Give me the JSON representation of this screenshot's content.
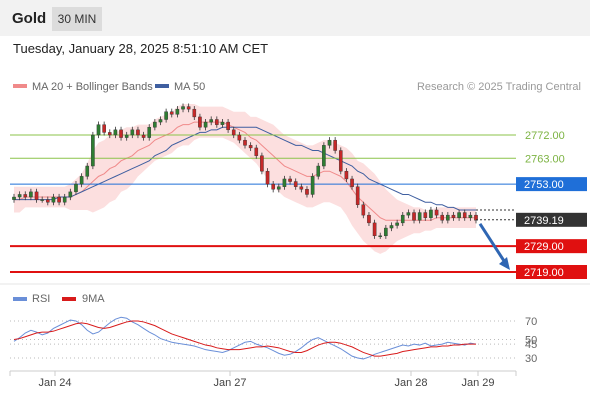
{
  "header": {
    "title": "Gold",
    "timeframe": "30 MIN"
  },
  "datetime": "Tuesday, January 28, 2025 8:51:10 AM CET",
  "legend": {
    "bb_label": "MA 20 + Bollinger Bands",
    "ma50_label": "MA 50"
  },
  "copyright": "Research © 2025 Trading Central",
  "colors": {
    "up": "#2e7d32",
    "down": "#c62828",
    "ma50": "#3f5fa0",
    "bb_fill": "#fcd9d9",
    "bb_line": "#f08a8a",
    "pivot": "#1f6fd8",
    "resistance": "#8bc34a",
    "support": "#e01010",
    "rsi": "#6a8fd8",
    "rsi_ma": "#d81b1b"
  },
  "chart_data": [
    {
      "type": "line",
      "title": "",
      "x_labels": [
        "Jan 24",
        "Jan 27",
        "Jan 28",
        "Jan 29"
      ],
      "y_range": [
        2712,
        2790
      ],
      "series": [
        {
          "name": "MA 20 + Bollinger Bands",
          "kind": "band"
        },
        {
          "name": "MA 50",
          "kind": "line"
        }
      ],
      "levels": [
        {
          "value": 2772.0,
          "label": "2772.00",
          "type": "resistance"
        },
        {
          "value": 2763.0,
          "label": "2763.00",
          "type": "resistance"
        },
        {
          "value": 2753.0,
          "label": "2753.00",
          "type": "pivot"
        },
        {
          "value": 2729.0,
          "label": "2729.00",
          "type": "support"
        },
        {
          "value": 2719.0,
          "label": "2719.00",
          "type": "support"
        }
      ],
      "last_price": {
        "value": 2739.19,
        "label": "2739.19"
      },
      "forecast": {
        "from": 2739.19,
        "to": 2719.0
      },
      "closes": [
        2748,
        2749,
        2748,
        2750,
        2747,
        2747,
        2746,
        2748,
        2746,
        2748,
        2750,
        2753,
        2756,
        2760,
        2772,
        2776,
        2773,
        2772,
        2774,
        2771,
        2772,
        2774,
        2772,
        2771,
        2775,
        2777,
        2778,
        2781,
        2780,
        2782,
        2783,
        2782,
        2779,
        2775,
        2777,
        2778,
        2776,
        2777,
        2774,
        2772,
        2770,
        2768,
        2767,
        2764,
        2758,
        2753,
        2751,
        2752,
        2755,
        2754,
        2752,
        2751,
        2749,
        2756,
        2760,
        2768,
        2770,
        2766,
        2758,
        2755,
        2752,
        2745,
        2741,
        2738,
        2733,
        2733,
        2736,
        2737,
        2738,
        2741,
        2742,
        2739,
        2742,
        2740,
        2743,
        2741,
        2739,
        2741,
        2740,
        2742,
        2740,
        2741,
        2739
      ],
      "bb_mid": [
        2747,
        2747,
        2748,
        2748,
        2748,
        2748,
        2748,
        2748,
        2748,
        2748,
        2748,
        2749,
        2750,
        2752,
        2754,
        2756,
        2757,
        2759,
        2760,
        2762,
        2763,
        2764,
        2766,
        2767,
        2768,
        2770,
        2771,
        2772,
        2773,
        2775,
        2776,
        2776,
        2777,
        2777,
        2777,
        2777,
        2777,
        2777,
        2776,
        2775,
        2774,
        2773,
        2771,
        2770,
        2768,
        2766,
        2764,
        2762,
        2760,
        2759,
        2758,
        2757,
        2756,
        2756,
        2757,
        2758,
        2758,
        2757,
        2756,
        2754,
        2751,
        2748,
        2746,
        2744,
        2742,
        2740,
        2739,
        2739,
        2739,
        2739,
        2739,
        2739,
        2739,
        2739,
        2739,
        2740,
        2740,
        2740,
        2740,
        2740,
        2740,
        2740,
        2740
      ],
      "bb_width": [
        5,
        5,
        4,
        4,
        4,
        4,
        4,
        4,
        4,
        4,
        5,
        6,
        7,
        9,
        12,
        13,
        13,
        13,
        13,
        12,
        12,
        11,
        10,
        9,
        8,
        8,
        8,
        8,
        8,
        8,
        8,
        8,
        7,
        6,
        6,
        6,
        6,
        6,
        6,
        6,
        7,
        8,
        8,
        9,
        10,
        11,
        12,
        12,
        12,
        12,
        12,
        12,
        12,
        12,
        12,
        12,
        12,
        12,
        12,
        13,
        14,
        14,
        15,
        15,
        15,
        14,
        12,
        10,
        8,
        7,
        6,
        5,
        5,
        4,
        4,
        4,
        4,
        4,
        4,
        4,
        4,
        4,
        4
      ],
      "ma50": [
        2747,
        2747,
        2747,
        2747,
        2747,
        2747,
        2747,
        2747,
        2748,
        2748,
        2748,
        2749,
        2750,
        2751,
        2752,
        2753,
        2754,
        2755,
        2756,
        2757,
        2758,
        2759,
        2760,
        2761,
        2762,
        2764,
        2765,
        2766,
        2768,
        2769,
        2770,
        2771,
        2772,
        2773,
        2773,
        2774,
        2774,
        2775,
        2775,
        2775,
        2775,
        2775,
        2775,
        2775,
        2774,
        2773,
        2772,
        2771,
        2770,
        2769,
        2768,
        2768,
        2767,
        2766,
        2766,
        2765,
        2764,
        2763,
        2762,
        2761,
        2760,
        2758,
        2757,
        2755,
        2754,
        2753,
        2752,
        2751,
        2750,
        2749,
        2749,
        2748,
        2747,
        2746,
        2746,
        2745,
        2745,
        2744,
        2744,
        2743,
        2743,
        2743,
        2743
      ]
    },
    {
      "type": "line",
      "title": "",
      "legend": [
        "RSI",
        "9MA"
      ],
      "y_ticks": [
        70,
        50,
        45,
        30
      ],
      "y_range": [
        20,
        80
      ],
      "rsi": [
        48,
        52,
        57,
        60,
        58,
        55,
        57,
        62,
        65,
        68,
        71,
        70,
        66,
        60,
        56,
        58,
        63,
        68,
        72,
        74,
        73,
        69,
        66,
        62,
        58,
        55,
        51,
        49,
        47,
        46,
        45,
        44,
        43,
        41,
        39,
        38,
        37,
        36,
        38,
        41,
        44,
        47,
        48,
        45,
        43,
        41,
        38,
        35,
        33,
        34,
        37,
        41,
        46,
        50,
        52,
        49,
        46,
        43,
        40,
        36,
        32,
        30,
        29,
        31,
        34,
        36,
        38,
        40,
        42,
        44,
        43,
        45,
        44,
        46,
        43,
        44,
        45,
        47,
        46,
        45,
        44,
        46,
        45
      ],
      "rsi_ma": [
        50,
        51,
        53,
        55,
        57,
        58,
        58,
        59,
        61,
        63,
        65,
        67,
        68,
        67,
        65,
        63,
        62,
        63,
        65,
        67,
        69,
        70,
        70,
        69,
        67,
        65,
        62,
        59,
        56,
        54,
        52,
        50,
        48,
        46,
        44,
        43,
        41,
        40,
        39,
        39,
        39,
        40,
        41,
        42,
        42,
        43,
        42,
        41,
        39,
        37,
        36,
        36,
        38,
        41,
        44,
        46,
        47,
        47,
        46,
        44,
        42,
        39,
        36,
        34,
        32,
        32,
        33,
        34,
        35,
        37,
        38,
        39,
        40,
        41,
        42,
        42,
        43,
        43,
        44,
        44,
        45,
        45,
        45
      ]
    }
  ]
}
